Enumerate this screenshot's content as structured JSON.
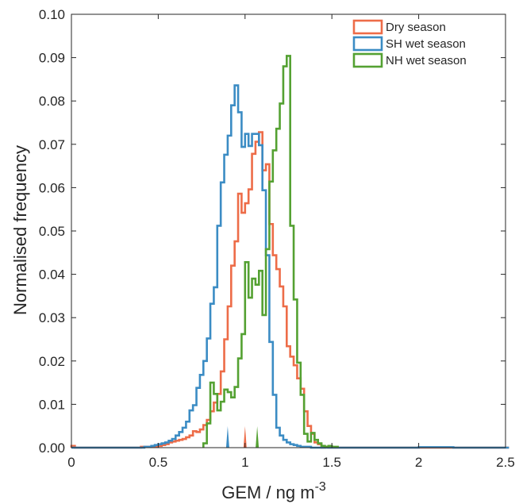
{
  "chart_data": {
    "type": "histogram-stairs",
    "xlabel": "GEM / ng m",
    "xlabel_exp": "-3",
    "ylabel": "Normalised frequency",
    "xlim": [
      0,
      2.5
    ],
    "ylim": [
      0,
      0.1
    ],
    "x_ticks": [
      0,
      0.5,
      1,
      1.5,
      2,
      2.5
    ],
    "x_tick_labels": [
      "0",
      "0.5",
      "1",
      "1.5",
      "2",
      "2.5"
    ],
    "y_ticks": [
      0,
      0.01,
      0.02,
      0.03,
      0.04,
      0.05,
      0.06,
      0.07,
      0.08,
      0.09,
      0.1
    ],
    "y_tick_labels": [
      "0.00",
      "0.01",
      "0.02",
      "0.03",
      "0.04",
      "0.05",
      "0.06",
      "0.07",
      "0.08",
      "0.09",
      "0.10"
    ],
    "grid": false,
    "box": true,
    "legend_position": "top-right",
    "series": [
      {
        "name": "Dry season",
        "color": "#ED6C48",
        "median_marker": 1.0,
        "points": [
          [
            0.0,
            0.0004
          ],
          [
            0.02,
            0.0
          ],
          [
            0.4,
            0.0002
          ],
          [
            0.44,
            0.0002
          ],
          [
            0.5,
            0.0004
          ],
          [
            0.52,
            0.0006
          ],
          [
            0.54,
            0.0008
          ],
          [
            0.56,
            0.0012
          ],
          [
            0.58,
            0.0014
          ],
          [
            0.6,
            0.0016
          ],
          [
            0.62,
            0.0018
          ],
          [
            0.64,
            0.002
          ],
          [
            0.66,
            0.0024
          ],
          [
            0.68,
            0.0028
          ],
          [
            0.7,
            0.0038
          ],
          [
            0.72,
            0.0036
          ],
          [
            0.74,
            0.0042
          ],
          [
            0.76,
            0.0052
          ],
          [
            0.78,
            0.0064
          ],
          [
            0.8,
            0.0084
          ],
          [
            0.82,
            0.0104
          ],
          [
            0.84,
            0.0124
          ],
          [
            0.86,
            0.0176
          ],
          [
            0.88,
            0.025
          ],
          [
            0.9,
            0.0326
          ],
          [
            0.92,
            0.042
          ],
          [
            0.94,
            0.0476
          ],
          [
            0.96,
            0.0586
          ],
          [
            0.98,
            0.0542
          ],
          [
            1.0,
            0.0564
          ],
          [
            1.02,
            0.0596
          ],
          [
            1.04,
            0.0678
          ],
          [
            1.06,
            0.0706
          ],
          [
            1.08,
            0.0728
          ],
          [
            1.1,
            0.064
          ],
          [
            1.12,
            0.0654
          ],
          [
            1.14,
            0.0516
          ],
          [
            1.16,
            0.0444
          ],
          [
            1.18,
            0.0412
          ],
          [
            1.2,
            0.0372
          ],
          [
            1.22,
            0.0326
          ],
          [
            1.24,
            0.0234
          ],
          [
            1.26,
            0.021
          ],
          [
            1.28,
            0.019
          ],
          [
            1.3,
            0.016
          ],
          [
            1.32,
            0.0136
          ],
          [
            1.34,
            0.0084
          ],
          [
            1.36,
            0.005
          ],
          [
            1.38,
            0.0032
          ],
          [
            1.4,
            0.0012
          ],
          [
            1.42,
            0.0008
          ],
          [
            1.44,
            0.0
          ],
          [
            1.46,
            0.0002
          ],
          [
            1.48,
            0.0
          ],
          [
            1.5,
            0.0
          ],
          [
            2.5,
            0.0
          ]
        ]
      },
      {
        "name": "SH wet season",
        "color": "#3B8CC4",
        "median_marker": 0.9,
        "points": [
          [
            0.0,
            0.0
          ],
          [
            0.42,
            0.0002
          ],
          [
            0.44,
            0.0002
          ],
          [
            0.46,
            0.0004
          ],
          [
            0.48,
            0.0006
          ],
          [
            0.5,
            0.0008
          ],
          [
            0.52,
            0.001
          ],
          [
            0.54,
            0.0012
          ],
          [
            0.56,
            0.0016
          ],
          [
            0.58,
            0.002
          ],
          [
            0.6,
            0.0028
          ],
          [
            0.62,
            0.0036
          ],
          [
            0.64,
            0.0046
          ],
          [
            0.66,
            0.006
          ],
          [
            0.68,
            0.0086
          ],
          [
            0.7,
            0.0098
          ],
          [
            0.72,
            0.0138
          ],
          [
            0.74,
            0.0168
          ],
          [
            0.76,
            0.02
          ],
          [
            0.78,
            0.0252
          ],
          [
            0.8,
            0.0332
          ],
          [
            0.82,
            0.037
          ],
          [
            0.84,
            0.0512
          ],
          [
            0.86,
            0.0612
          ],
          [
            0.88,
            0.0676
          ],
          [
            0.9,
            0.072
          ],
          [
            0.92,
            0.079
          ],
          [
            0.94,
            0.0836
          ],
          [
            0.96,
            0.0774
          ],
          [
            0.98,
            0.0694
          ],
          [
            1.0,
            0.0724
          ],
          [
            1.02,
            0.0696
          ],
          [
            1.04,
            0.0724
          ],
          [
            1.06,
            0.0724
          ],
          [
            1.08,
            0.0698
          ],
          [
            1.1,
            0.0594
          ],
          [
            1.12,
            0.0444
          ],
          [
            1.14,
            0.0244
          ],
          [
            1.16,
            0.0122
          ],
          [
            1.18,
            0.0046
          ],
          [
            1.2,
            0.0028
          ],
          [
            1.22,
            0.0018
          ],
          [
            1.24,
            0.0012
          ],
          [
            1.26,
            0.0008
          ],
          [
            1.28,
            0.0006
          ],
          [
            1.3,
            0.0004
          ],
          [
            1.32,
            0.0002
          ],
          [
            1.34,
            0.0002
          ],
          [
            1.36,
            0.0002
          ],
          [
            1.38,
            0.0
          ],
          [
            2.0,
            0.0001
          ],
          [
            2.2,
            0.0
          ],
          [
            2.5,
            0.0
          ]
        ]
      },
      {
        "name": "NH wet season",
        "color": "#54A132",
        "median_marker": 1.07,
        "points": [
          [
            0.76,
            0.001
          ],
          [
            0.78,
            0.0056
          ],
          [
            0.8,
            0.015
          ],
          [
            0.82,
            0.0124
          ],
          [
            0.84,
            0.0086
          ],
          [
            0.86,
            0.0106
          ],
          [
            0.88,
            0.0134
          ],
          [
            0.9,
            0.0128
          ],
          [
            0.92,
            0.0116
          ],
          [
            0.94,
            0.014
          ],
          [
            0.96,
            0.0206
          ],
          [
            0.98,
            0.0262
          ],
          [
            1.0,
            0.0428
          ],
          [
            1.02,
            0.0346
          ],
          [
            1.04,
            0.039
          ],
          [
            1.06,
            0.0376
          ],
          [
            1.08,
            0.0408
          ],
          [
            1.1,
            0.0306
          ],
          [
            1.12,
            0.0458
          ],
          [
            1.14,
            0.0614
          ],
          [
            1.16,
            0.0686
          ],
          [
            1.18,
            0.0736
          ],
          [
            1.2,
            0.0794
          ],
          [
            1.22,
            0.088
          ],
          [
            1.24,
            0.0904
          ],
          [
            1.26,
            0.0512
          ],
          [
            1.28,
            0.0342
          ],
          [
            1.3,
            0.0196
          ],
          [
            1.32,
            0.0122
          ],
          [
            1.34,
            0.0032
          ],
          [
            1.36,
            0.0014
          ],
          [
            1.38,
            0.0034
          ],
          [
            1.4,
            0.0018
          ],
          [
            1.42,
            0.001
          ],
          [
            1.44,
            0.0004
          ],
          [
            1.46,
            0.0002
          ],
          [
            1.48,
            0.0004
          ],
          [
            1.5,
            0.0002
          ],
          [
            1.52,
            0.0002
          ]
        ]
      }
    ]
  }
}
